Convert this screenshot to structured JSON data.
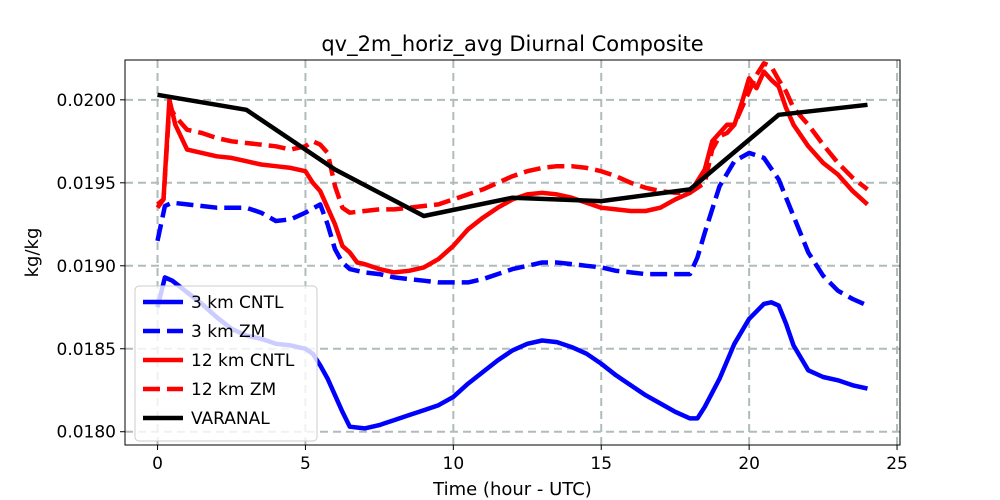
{
  "chart_data": {
    "type": "line",
    "title": "qv_2m_horiz_avg Diurnal Composite",
    "xlabel": "Time (hour - UTC)",
    "ylabel": "kg/kg",
    "xlim": [
      -1.1,
      25.1
    ],
    "ylim": [
      0.01792,
      0.02024
    ],
    "xticks": [
      0,
      5,
      10,
      15,
      20,
      25
    ],
    "xtick_labels": [
      "0",
      "5",
      "10",
      "15",
      "20",
      "25"
    ],
    "yticks": [
      0.018,
      0.0185,
      0.019,
      0.0195,
      0.02
    ],
    "ytick_labels": [
      "0.0180",
      "0.0185",
      "0.0190",
      "0.0195",
      "0.0200"
    ],
    "grid": true,
    "legend_position": "lower left",
    "series": [
      {
        "name": "3 km CNTL",
        "color": "#0000ff",
        "dash": "solid",
        "x": [
          0,
          0.25,
          0.5,
          1,
          1.5,
          2,
          2.5,
          3,
          3.5,
          4,
          4.5,
          5,
          5.25,
          5.5,
          5.75,
          6,
          6.25,
          6.5,
          7,
          7.5,
          8,
          8.5,
          9,
          9.5,
          10,
          10.5,
          11,
          11.5,
          12,
          12.5,
          13,
          13.5,
          14,
          14.5,
          15,
          15.5,
          16,
          16.5,
          17,
          17.5,
          18,
          18.25,
          18.5,
          19,
          19.5,
          20,
          20.5,
          20.75,
          21,
          21.25,
          21.5,
          22,
          22.5,
          23,
          23.5,
          24
        ],
        "values": [
          0.01875,
          0.01893,
          0.01891,
          0.01884,
          0.01877,
          0.01869,
          0.01862,
          0.01858,
          0.01856,
          0.01853,
          0.01852,
          0.0185,
          0.01847,
          0.0184,
          0.01832,
          0.01822,
          0.01812,
          0.01803,
          0.01802,
          0.01804,
          0.01807,
          0.0181,
          0.01813,
          0.01816,
          0.01821,
          0.01829,
          0.01836,
          0.01843,
          0.01849,
          0.01853,
          0.01855,
          0.01854,
          0.01851,
          0.01847,
          0.01841,
          0.01834,
          0.01828,
          0.01822,
          0.01817,
          0.01812,
          0.01808,
          0.01808,
          0.01815,
          0.01832,
          0.01853,
          0.01868,
          0.01877,
          0.01878,
          0.01876,
          0.01865,
          0.01852,
          0.01837,
          0.01833,
          0.01831,
          0.01828,
          0.01826
        ]
      },
      {
        "name": "3 km ZM",
        "color": "#0000ff",
        "dash": "dashed",
        "x": [
          0,
          0.25,
          0.5,
          1,
          1.5,
          2,
          2.5,
          3,
          3.5,
          4,
          4.5,
          5,
          5.5,
          5.75,
          6,
          6.25,
          6.5,
          7,
          7.5,
          8,
          8.5,
          9,
          9.5,
          10,
          10.5,
          11,
          11.5,
          12,
          12.5,
          13,
          13.5,
          14,
          14.5,
          15,
          15.5,
          16,
          16.5,
          17,
          17.5,
          18,
          18.25,
          18.5,
          19,
          19.5,
          20,
          20.5,
          21,
          21.5,
          22,
          22.5,
          23,
          23.5,
          24
        ],
        "values": [
          0.01915,
          0.01936,
          0.01938,
          0.01937,
          0.01936,
          0.01935,
          0.01935,
          0.01935,
          0.01932,
          0.01927,
          0.01928,
          0.01932,
          0.01937,
          0.01925,
          0.0191,
          0.01902,
          0.01898,
          0.01896,
          0.01895,
          0.01893,
          0.01892,
          0.01891,
          0.0189,
          0.0189,
          0.0189,
          0.01892,
          0.01895,
          0.01898,
          0.019,
          0.01902,
          0.01902,
          0.01901,
          0.019,
          0.01899,
          0.01897,
          0.01896,
          0.01895,
          0.01895,
          0.01895,
          0.01895,
          0.01905,
          0.0192,
          0.01948,
          0.01963,
          0.01968,
          0.01965,
          0.01952,
          0.0193,
          0.01908,
          0.01894,
          0.01885,
          0.0188,
          0.01876
        ]
      },
      {
        "name": "12 km CNTL",
        "color": "#ff0000",
        "dash": "solid",
        "x": [
          0,
          0.2,
          0.4,
          0.6,
          1,
          1.5,
          2,
          2.5,
          3,
          3.5,
          4,
          4.5,
          5,
          5.25,
          5.5,
          5.75,
          6,
          6.25,
          6.5,
          6.75,
          7,
          7.5,
          8,
          8.5,
          9,
          9.5,
          10,
          10.5,
          11,
          11.5,
          12,
          12.5,
          13,
          13.5,
          14,
          14.5,
          15,
          15.5,
          16,
          16.5,
          17,
          17.5,
          18,
          18.5,
          18.75,
          19,
          19.25,
          19.5,
          19.75,
          20,
          20.25,
          20.5,
          20.75,
          21,
          21.25,
          21.5,
          22,
          22.5,
          23,
          23.5,
          24
        ],
        "values": [
          0.01937,
          0.0194,
          0.02,
          0.01985,
          0.0197,
          0.01968,
          0.01966,
          0.01965,
          0.01963,
          0.01961,
          0.0196,
          0.01959,
          0.01957,
          0.0195,
          0.01945,
          0.01935,
          0.01925,
          0.01912,
          0.01908,
          0.01902,
          0.01901,
          0.01898,
          0.01896,
          0.01897,
          0.01899,
          0.01904,
          0.01912,
          0.01922,
          0.01929,
          0.01935,
          0.0194,
          0.01943,
          0.01944,
          0.01943,
          0.01941,
          0.01938,
          0.01935,
          0.01934,
          0.01933,
          0.01933,
          0.01935,
          0.0194,
          0.01944,
          0.01958,
          0.01975,
          0.0198,
          0.01985,
          0.01985,
          0.01998,
          0.02013,
          0.02007,
          0.02017,
          0.02012,
          0.02008,
          0.01995,
          0.01985,
          0.01972,
          0.01962,
          0.01955,
          0.01945,
          0.01937
        ]
      },
      {
        "name": "12 km ZM",
        "color": "#ff0000",
        "dash": "dashed",
        "x": [
          0,
          0.2,
          0.4,
          0.6,
          1,
          1.5,
          2,
          2.5,
          3,
          3.5,
          4,
          4.5,
          5,
          5.25,
          5.5,
          5.75,
          6,
          6.25,
          6.5,
          7,
          7.5,
          8,
          8.5,
          9,
          9.5,
          10,
          10.5,
          11,
          11.5,
          12,
          12.5,
          13,
          13.5,
          14,
          14.5,
          15,
          15.5,
          16,
          16.5,
          17,
          17.5,
          18,
          18.5,
          18.75,
          19,
          19.25,
          19.5,
          19.75,
          20,
          20.25,
          20.5,
          20.75,
          21,
          21.25,
          21.5,
          22,
          22.5,
          23,
          23.5,
          24
        ],
        "values": [
          0.01935,
          0.0194,
          0.01996,
          0.0199,
          0.01982,
          0.0198,
          0.01977,
          0.01975,
          0.01974,
          0.01973,
          0.01972,
          0.0197,
          0.01972,
          0.01975,
          0.01973,
          0.01968,
          0.01948,
          0.01935,
          0.01932,
          0.01933,
          0.01934,
          0.01934,
          0.01935,
          0.01936,
          0.01937,
          0.0194,
          0.01943,
          0.01946,
          0.0195,
          0.01954,
          0.01957,
          0.01959,
          0.0196,
          0.0196,
          0.01959,
          0.01957,
          0.01954,
          0.0195,
          0.01947,
          0.01945,
          0.01944,
          0.01944,
          0.0195,
          0.0197,
          0.01978,
          0.0198,
          0.01985,
          0.01995,
          0.02005,
          0.02015,
          0.02022,
          0.0202,
          0.02012,
          0.02005,
          0.01995,
          0.01985,
          0.01973,
          0.01962,
          0.01953,
          0.01946
        ]
      },
      {
        "name": "VARANAL",
        "color": "#000000",
        "dash": "solid",
        "x": [
          0,
          3,
          6,
          9,
          12,
          15,
          18,
          21,
          24
        ],
        "values": [
          0.02003,
          0.01994,
          0.01958,
          0.0193,
          0.01941,
          0.01939,
          0.01946,
          0.01991,
          0.01997
        ]
      }
    ]
  }
}
